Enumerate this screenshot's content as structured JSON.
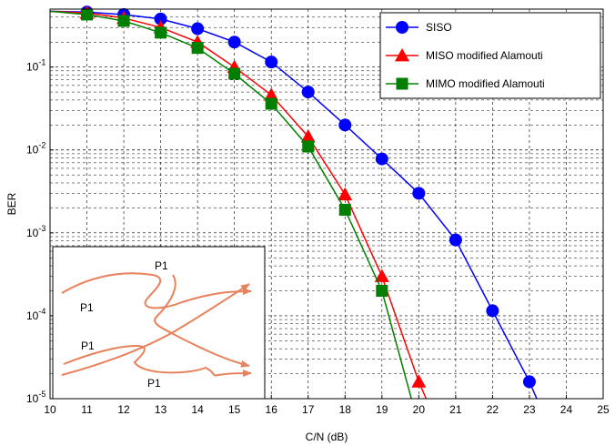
{
  "chart_data": {
    "type": "line",
    "title": "",
    "xlabel": "C/N  (dB)",
    "ylabel": "BER",
    "xlim": [
      10,
      25
    ],
    "ylim": [
      1e-05,
      0.5
    ],
    "yscale": "log",
    "grid": true,
    "legend_position": "top-right",
    "x_ticks": [
      "10",
      "11",
      "12",
      "13",
      "14",
      "15",
      "16",
      "17",
      "18",
      "19",
      "20",
      "21",
      "22",
      "23",
      "24",
      "25"
    ],
    "y_ticks": [
      {
        "value": 0.1,
        "base": "10",
        "exp": "-1"
      },
      {
        "value": 0.01,
        "base": "10",
        "exp": "-2"
      },
      {
        "value": 0.001,
        "base": "10",
        "exp": "-3"
      },
      {
        "value": 0.0001,
        "base": "10",
        "exp": "-4"
      },
      {
        "value": 1e-05,
        "base": "10",
        "exp": "-5"
      }
    ],
    "series": [
      {
        "name": "SISO",
        "color": "#0000ff",
        "marker": "circle",
        "x": [
          10,
          11,
          12,
          13,
          14,
          15,
          16,
          17,
          18,
          19,
          20,
          21,
          22,
          23,
          23.2
        ],
        "y": [
          0.47,
          0.46,
          0.43,
          0.38,
          0.29,
          0.2,
          0.115,
          0.05,
          0.02,
          0.0078,
          0.003,
          0.00082,
          0.000115,
          1.6e-05,
          1e-05
        ]
      },
      {
        "name": "MISO modified Alamouti",
        "color": "#ff0000",
        "marker": "triangle",
        "x": [
          10,
          11,
          12,
          13,
          14,
          15,
          16,
          17,
          18,
          19,
          20,
          20.2
        ],
        "y": [
          0.47,
          0.45,
          0.39,
          0.3,
          0.2,
          0.1,
          0.046,
          0.0145,
          0.0029,
          0.0003,
          1.6e-05,
          1e-05
        ]
      },
      {
        "name": "MIMO  modified Alamouti",
        "color": "#008000",
        "marker": "square",
        "x": [
          10,
          11,
          12,
          13,
          14,
          15,
          16,
          17,
          18,
          19,
          19.8
        ],
        "y": [
          0.47,
          0.43,
          0.36,
          0.26,
          0.17,
          0.083,
          0.036,
          0.011,
          0.0019,
          0.0002,
          1e-05
        ]
      }
    ]
  },
  "inset": {
    "labels": [
      "P1",
      "P1",
      "P1",
      "P1"
    ],
    "arrow_color": "#e8815c"
  }
}
